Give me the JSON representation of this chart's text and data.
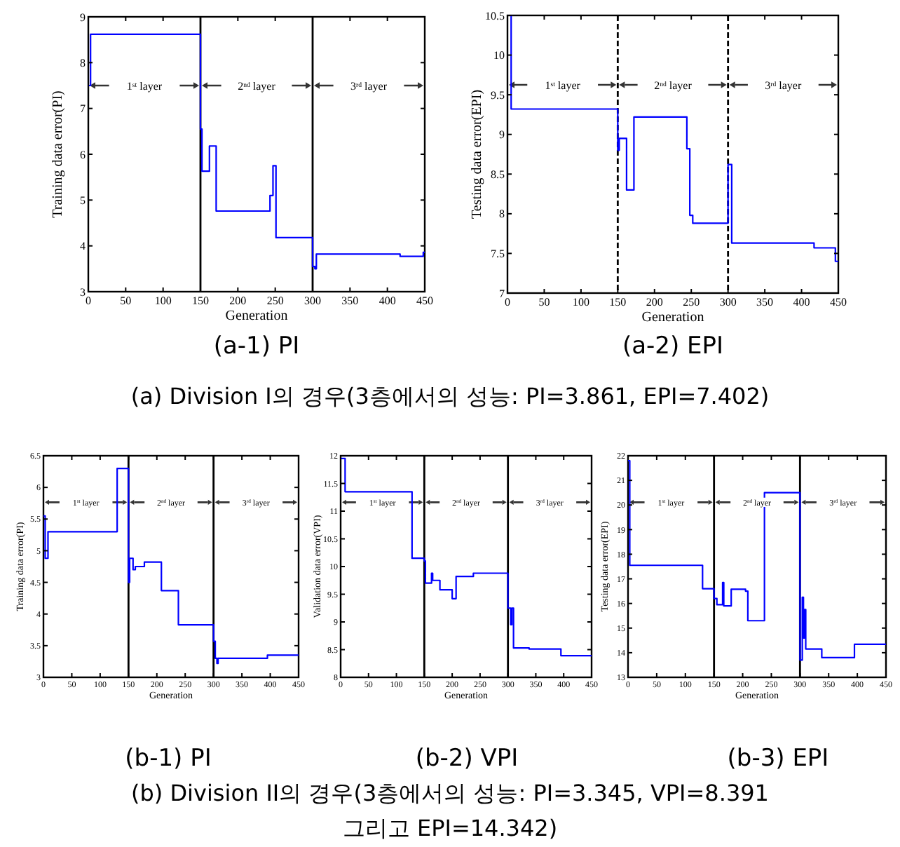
{
  "chart_data": [
    {
      "type": "step",
      "title": "(a-1) PI",
      "xlabel": "Generation",
      "ylabel": "Training data error(PI)",
      "xlim": [
        0,
        450
      ],
      "xticks": [
        0,
        50,
        100,
        150,
        200,
        250,
        300,
        350,
        400,
        450
      ],
      "ylim": [
        3,
        9
      ],
      "yticks": [
        3,
        4,
        5,
        6,
        7,
        8,
        9
      ],
      "grid": false,
      "marker": "none",
      "line_style": "solid",
      "series": [
        {
          "color": "#0000ff",
          "x": [
            1,
            3,
            150,
            152,
            162,
            171,
            243,
            247,
            251,
            300,
            303,
            305,
            417,
            448,
            450
          ],
          "values": [
            7.5,
            8.62,
            6.55,
            5.63,
            6.18,
            4.76,
            5.1,
            5.75,
            4.18,
            3.55,
            3.5,
            3.82,
            3.77,
            3.86,
            3.86
          ]
        }
      ],
      "ref_lines": [
        {
          "axis": "x",
          "value": 150,
          "color": "#000000",
          "line_style": "solid"
        },
        {
          "axis": "x",
          "value": 300,
          "color": "#000000",
          "line_style": "solid"
        }
      ],
      "annotations": [
        "1$^{st}$ layer",
        "2$^{nd}$ layer",
        "3$^{rd}$ layer"
      ]
    },
    {
      "type": "step",
      "title": "(a-2) EPI",
      "xlabel": "Generation",
      "ylabel": "Testing data error(EPI)",
      "xlim": [
        0,
        450
      ],
      "xticks": [
        0,
        50,
        100,
        150,
        200,
        250,
        300,
        350,
        400,
        450
      ],
      "ylim": [
        7,
        10.5
      ],
      "yticks": [
        7,
        7.5,
        8,
        8.5,
        9,
        9.5,
        10,
        10.5
      ],
      "grid": false,
      "marker": "none",
      "line_style": "solid",
      "series": [
        {
          "color": "#0000ff",
          "x": [
            0,
            5,
            150,
            152,
            162,
            172,
            244,
            248,
            252,
            300,
            305,
            417,
            446,
            450
          ],
          "values": [
            10.5,
            9.32,
            8.8,
            8.95,
            8.3,
            9.22,
            8.82,
            7.98,
            7.88,
            8.62,
            7.63,
            7.57,
            7.4,
            7.4
          ]
        }
      ],
      "ref_lines": [
        {
          "axis": "x",
          "value": 150,
          "color": "#000000",
          "line_style": "dashed"
        },
        {
          "axis": "x",
          "value": 300,
          "color": "#000000",
          "line_style": "dashed"
        }
      ],
      "annotations": [
        "1$^{st}$ layer",
        "2$^{nd}$ layer",
        "3$^{rd}$ layer",
        "(a) Division I의 경우(3층에서의 성능: PI=3.861, EPI=7.402)"
      ]
    },
    {
      "type": "step",
      "title": "(b-1) PI",
      "xlabel": "Generation",
      "ylabel": "Training data error(PI)",
      "xlim": [
        0,
        450
      ],
      "xticks": [
        0,
        50,
        100,
        150,
        200,
        250,
        300,
        350,
        400,
        450
      ],
      "ylim": [
        3,
        6.5
      ],
      "yticks": [
        3,
        3.5,
        4,
        4.5,
        5,
        5.5,
        6,
        6.5
      ],
      "grid": false,
      "marker": "none",
      "line_style": "solid",
      "series": [
        {
          "color": "#0000ff",
          "x": [
            0,
            3,
            8,
            130,
            150,
            152,
            158,
            162,
            178,
            208,
            238,
            300,
            303,
            306,
            308,
            395,
            450
          ],
          "values": [
            5.55,
            4.88,
            5.3,
            6.3,
            4.5,
            4.88,
            4.7,
            4.75,
            4.82,
            4.37,
            3.83,
            3.57,
            3.3,
            3.22,
            3.3,
            3.35,
            3.35
          ]
        }
      ],
      "ref_lines": [
        {
          "axis": "x",
          "value": 150,
          "color": "#000000",
          "line_style": "solid"
        },
        {
          "axis": "x",
          "value": 300,
          "color": "#000000",
          "line_style": "solid"
        }
      ],
      "annotations": [
        "1$^{st}$ layer",
        "2$^{nd}$ layer",
        "3$^{rd}$ layer"
      ]
    },
    {
      "type": "step",
      "title": "(b-2) VPI",
      "xlabel": "Generation",
      "ylabel": "Validation data error(VPI)",
      "xlim": [
        0,
        450
      ],
      "xticks": [
        0,
        50,
        100,
        150,
        200,
        250,
        300,
        350,
        400,
        450
      ],
      "ylim": [
        8,
        12
      ],
      "yticks": [
        8,
        8.5,
        9,
        9.5,
        10,
        10.5,
        11,
        11.5,
        12
      ],
      "grid": false,
      "marker": "none",
      "line_style": "solid",
      "series": [
        {
          "color": "#0000ff",
          "x": [
            0,
            8,
            128,
            150,
            152,
            163,
            165,
            178,
            200,
            207,
            238,
            300,
            305,
            307,
            310,
            338,
            395,
            450
          ],
          "values": [
            11.95,
            11.35,
            10.15,
            10.1,
            9.7,
            9.88,
            9.75,
            9.58,
            9.42,
            9.82,
            9.88,
            9.25,
            8.95,
            9.25,
            8.53,
            8.51,
            8.39,
            8.39
          ]
        }
      ],
      "ref_lines": [
        {
          "axis": "x",
          "value": 150,
          "color": "#000000",
          "line_style": "solid"
        },
        {
          "axis": "x",
          "value": 300,
          "color": "#000000",
          "line_style": "solid"
        }
      ],
      "annotations": [
        "1$^{st}$ layer",
        "2$^{nd}$ layer",
        "3$^{rd}$ layer"
      ]
    },
    {
      "type": "step",
      "title": "(b-3) EPI",
      "xlabel": "Generation",
      "ylabel": "Testing data error(EPI)",
      "xlim": [
        0,
        450
      ],
      "xticks": [
        0,
        50,
        100,
        150,
        200,
        250,
        300,
        350,
        400,
        450
      ],
      "ylim": [
        13,
        22
      ],
      "yticks": [
        13,
        14,
        15,
        16,
        17,
        18,
        19,
        20,
        21,
        22
      ],
      "grid": false,
      "marker": "none",
      "line_style": "solid",
      "series": [
        {
          "color": "#0000ff",
          "x": [
            0,
            3,
            130,
            150,
            155,
            165,
            167,
            180,
            205,
            209,
            238,
            300,
            304,
            306,
            308,
            310,
            338,
            395,
            450
          ],
          "values": [
            21.8,
            17.55,
            16.6,
            16.2,
            15.95,
            16.85,
            15.9,
            16.58,
            16.5,
            15.3,
            20.5,
            13.7,
            16.25,
            14.6,
            15.75,
            14.15,
            13.8,
            14.34,
            14.34
          ]
        }
      ],
      "ref_lines": [
        {
          "axis": "x",
          "value": 150,
          "color": "#000000",
          "line_style": "solid"
        },
        {
          "axis": "x",
          "value": 300,
          "color": "#000000",
          "line_style": "solid"
        }
      ],
      "annotations": [
        "1$^{st}$ layer",
        "2$^{nd}$ layer",
        "3$^{rd}$ layer",
        "(b) Division II의 경우(3층에서의 성능: PI=3.345, VPI=8.391",
        "그리고 EPI=14.342)"
      ]
    }
  ]
}
